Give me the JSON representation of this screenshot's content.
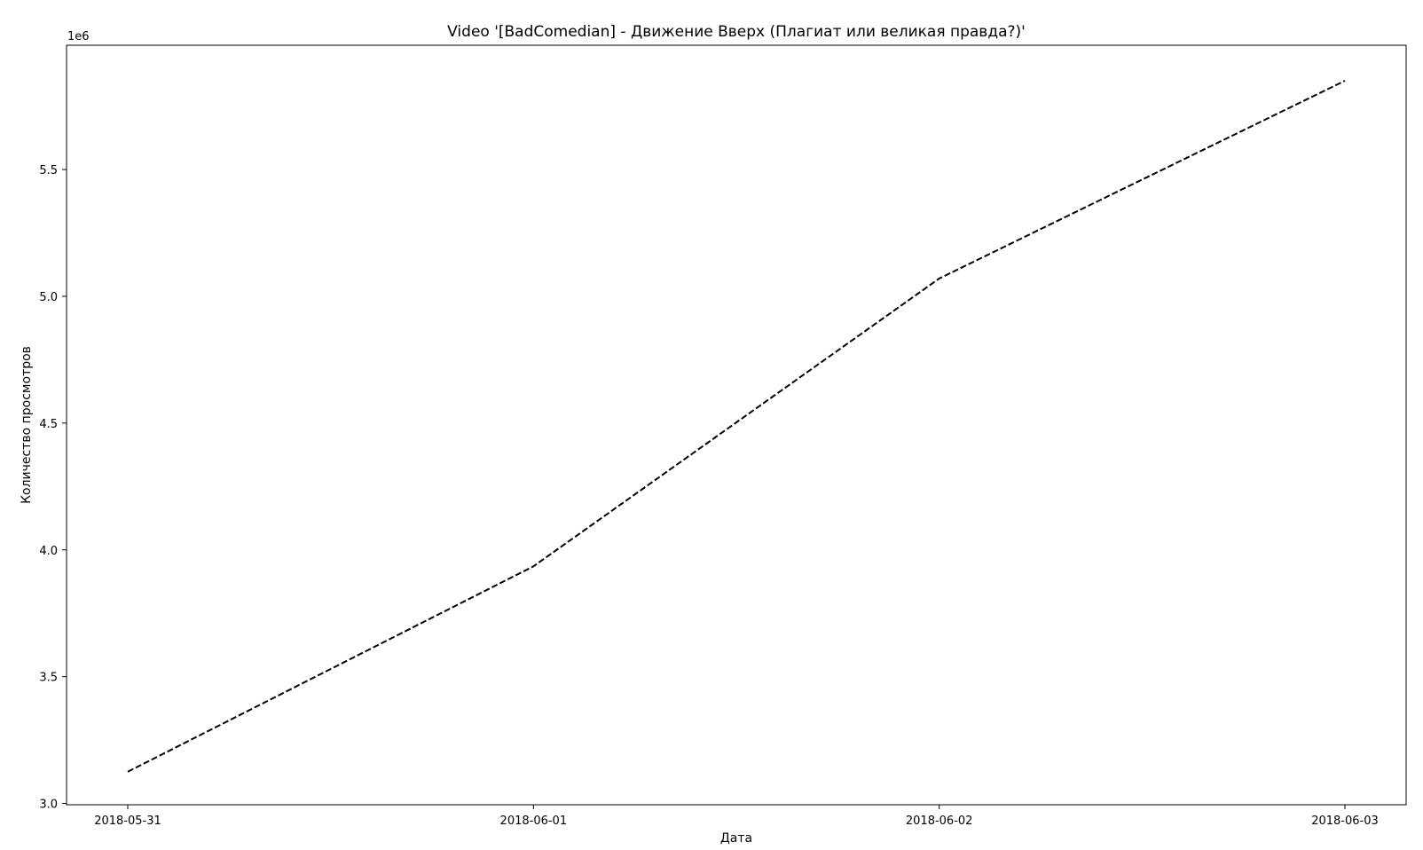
{
  "chart_data": {
    "type": "line",
    "title": "Video '[BadComedian] - Движение Вверх (Плагиат или великая правда?)'",
    "xlabel": "Дата",
    "ylabel": "Количество просмотров",
    "y_offset_label": "1e6",
    "x": [
      "2018-05-31",
      "2018-06-01",
      "2018-06-02",
      "2018-06-03"
    ],
    "x_ticks": [
      "2018-05-31",
      "2018-06-01",
      "2018-06-02",
      "2018-06-03"
    ],
    "y_ticks": [
      "3.0",
      "3.5",
      "4.0",
      "4.5",
      "5.0",
      "5.5"
    ],
    "y_tick_values": [
      3000000,
      3500000,
      4000000,
      4500000,
      5000000,
      5500000
    ],
    "ylim": [
      2995000,
      5990000
    ],
    "grid": false,
    "series": [
      {
        "values": [
          3125000,
          3935000,
          5070000,
          5850000
        ],
        "color": "#000000",
        "line_style": "dashed"
      }
    ]
  }
}
